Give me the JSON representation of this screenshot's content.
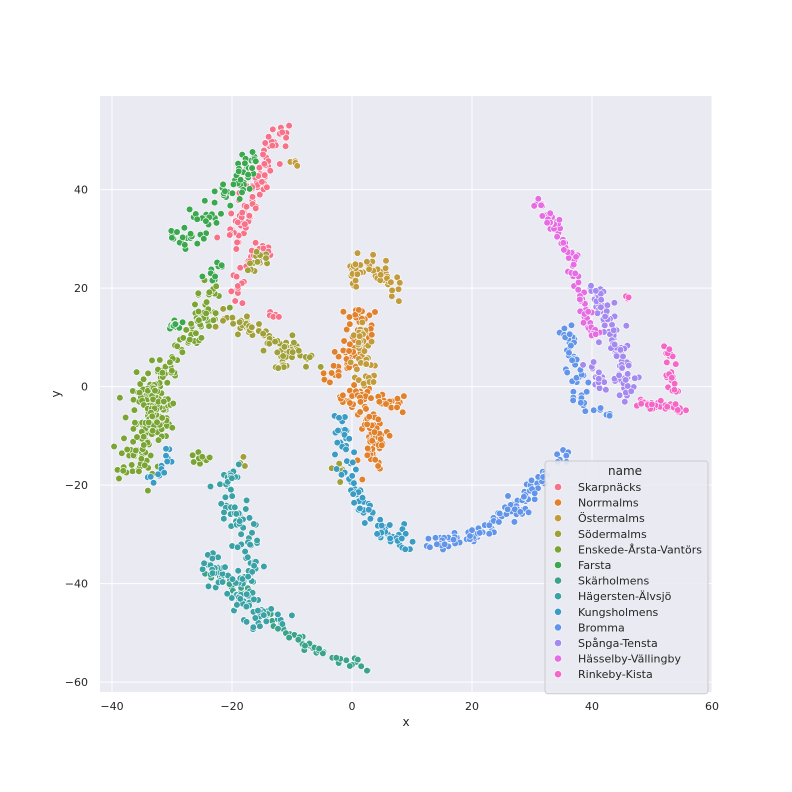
{
  "chart_data": {
    "type": "scatter",
    "xlabel": "x",
    "ylabel": "y",
    "xlim": [
      -42,
      60
    ],
    "ylim": [
      -62,
      59
    ],
    "xticks": [
      -40,
      -20,
      0,
      20,
      40,
      60
    ],
    "yticks": [
      -60,
      -40,
      -20,
      0,
      20,
      40
    ],
    "grid": true,
    "legend": {
      "title": "name",
      "placement": "lower-right"
    },
    "series": [
      {
        "name": "Skarpnäcks",
        "color": "#f77189",
        "clusters": [
          {
            "path": [
              [
                -20,
                29
              ],
              [
                -17,
                37
              ],
              [
                -15,
                43
              ],
              [
                -13,
                49
              ],
              [
                -11,
                53
              ]
            ],
            "spread": 1.6,
            "n": 90
          },
          {
            "path": [
              [
                -20,
                18
              ],
              [
                -18,
                24
              ],
              [
                -16,
                28
              ]
            ],
            "spread": 1.2,
            "n": 25
          },
          {
            "path": [
              [
                -14,
                15
              ],
              [
                -12,
                14
              ]
            ],
            "spread": 0.6,
            "n": 6
          },
          {
            "path": [
              [
                -15,
                29
              ],
              [
                -14,
                26
              ]
            ],
            "spread": 0.8,
            "n": 8
          }
        ]
      },
      {
        "name": "Norrmalms",
        "color": "#e1812c",
        "clusters": [
          {
            "path": [
              [
                -4,
                2
              ],
              [
                0,
                6
              ],
              [
                2,
                11
              ],
              [
                1,
                15
              ]
            ],
            "spread": 1.8,
            "n": 70
          },
          {
            "path": [
              [
                -2,
                -3
              ],
              [
                2,
                -1
              ],
              [
                5,
                -3
              ],
              [
                8,
                -3
              ]
            ],
            "spread": 1.5,
            "n": 50
          },
          {
            "path": [
              [
                2,
                -5
              ],
              [
                4,
                -10
              ],
              [
                3,
                -16
              ]
            ],
            "spread": 1.7,
            "n": 60
          }
        ]
      },
      {
        "name": "Östermalms",
        "color": "#c29c3c",
        "clusters": [
          {
            "path": [
              [
                0,
                20
              ],
              [
                2,
                26
              ],
              [
                5,
                22
              ],
              [
                8,
                19
              ]
            ],
            "spread": 1.6,
            "n": 45
          },
          {
            "path": [
              [
                1,
                13
              ],
              [
                2,
                6
              ],
              [
                3,
                0
              ]
            ],
            "spread": 1.5,
            "n": 45
          },
          {
            "path": [
              [
                -10,
                46
              ],
              [
                -9,
                45
              ]
            ],
            "spread": 0.5,
            "n": 4
          }
        ]
      },
      {
        "name": "Södermalms",
        "color": "#a0a03a",
        "clusters": [
          {
            "path": [
              [
                -23,
                15
              ],
              [
                -17,
                12
              ],
              [
                -12,
                8
              ],
              [
                -6,
                5
              ]
            ],
            "spread": 1.8,
            "n": 70
          },
          {
            "path": [
              [
                -17,
                23
              ],
              [
                -15,
                27
              ]
            ],
            "spread": 1.0,
            "n": 15
          },
          {
            "path": [
              [
                -12,
                4
              ],
              [
                -10,
                8
              ]
            ],
            "spread": 1.0,
            "n": 12
          },
          {
            "path": [
              [
                -2,
                -16
              ],
              [
                -2,
                -20
              ]
            ],
            "spread": 0.6,
            "n": 5
          },
          {
            "path": [
              [
                -18,
                -15
              ],
              [
                -17,
                -17
              ]
            ],
            "spread": 0.5,
            "n": 4
          }
        ]
      },
      {
        "name": "Enskede-Årsta-Vantörs",
        "color": "#7aa534",
        "clusters": [
          {
            "path": [
              [
                -36,
                -17
              ],
              [
                -35,
                -8
              ],
              [
                -34,
                0
              ],
              [
                -30,
                4
              ]
            ],
            "spread": 2.4,
            "n": 140
          },
          {
            "path": [
              [
                -28,
                8
              ],
              [
                -25,
                15
              ],
              [
                -23,
                20
              ]
            ],
            "spread": 2.0,
            "n": 60
          },
          {
            "path": [
              [
                -33,
                -10
              ],
              [
                -31,
                -3
              ]
            ],
            "spread": 2.0,
            "n": 60
          },
          {
            "path": [
              [
                -27,
                -14
              ],
              [
                -24,
                -15
              ]
            ],
            "spread": 0.8,
            "n": 10
          }
        ]
      },
      {
        "name": "Farsta",
        "color": "#3ba74f",
        "clusters": [
          {
            "path": [
              [
                -30,
                30
              ],
              [
                -26,
                31
              ],
              [
                -22,
                38
              ],
              [
                -19,
                42
              ],
              [
                -16,
                47
              ]
            ],
            "spread": 2.0,
            "n": 80
          },
          {
            "path": [
              [
                -30,
                12
              ],
              [
                -28,
                14
              ]
            ],
            "spread": 1.0,
            "n": 12
          },
          {
            "path": [
              [
                -24,
                22
              ],
              [
                -22,
                26
              ]
            ],
            "spread": 1.2,
            "n": 12
          }
        ]
      },
      {
        "name": "Skärholmens",
        "color": "#3ba38c",
        "clusters": [
          {
            "path": [
              [
                -15,
                -45
              ],
              [
                -11,
                -50
              ],
              [
                -7,
                -53
              ],
              [
                -3,
                -55
              ],
              [
                0,
                -56
              ],
              [
                2,
                -57
              ]
            ],
            "spread": 1.0,
            "n": 50
          },
          {
            "path": [
              [
                -24,
                -38
              ],
              [
                -20,
                -40
              ],
              [
                -17,
                -41
              ]
            ],
            "spread": 1.4,
            "n": 30
          }
        ]
      },
      {
        "name": "Hägersten-Älvsjö",
        "color": "#3aa1a6",
        "clusters": [
          {
            "path": [
              [
                -21,
                -17
              ],
              [
                -20,
                -24
              ],
              [
                -18,
                -30
              ],
              [
                -17,
                -36
              ],
              [
                -19,
                -42
              ],
              [
                -17,
                -46
              ],
              [
                -14,
                -48
              ],
              [
                -11,
                -48
              ]
            ],
            "spread": 1.8,
            "n": 130
          },
          {
            "path": [
              [
                -24,
                -35
              ],
              [
                -21,
                -40
              ]
            ],
            "spread": 1.5,
            "n": 25
          }
        ]
      },
      {
        "name": "Kungsholmens",
        "color": "#3a9cc4",
        "clusters": [
          {
            "path": [
              [
                -2,
                -6
              ],
              [
                -1,
                -14
              ],
              [
                0,
                -20
              ],
              [
                2,
                -25
              ],
              [
                5,
                -29
              ],
              [
                8,
                -31
              ],
              [
                11,
                -32
              ]
            ],
            "spread": 1.4,
            "n": 90
          },
          {
            "path": [
              [
                -30,
                -13
              ],
              [
                -32,
                -18
              ],
              [
                -34,
                -19
              ]
            ],
            "spread": 1.0,
            "n": 15
          }
        ]
      },
      {
        "name": "Bromma",
        "color": "#6295ea",
        "clusters": [
          {
            "path": [
              [
                11,
                -32
              ],
              [
                18,
                -31
              ],
              [
                23,
                -29
              ],
              [
                28,
                -23
              ],
              [
                32,
                -18
              ],
              [
                36,
                -13
              ]
            ],
            "spread": 1.3,
            "n": 110
          },
          {
            "path": [
              [
                36,
                12
              ],
              [
                37,
                5
              ],
              [
                38,
                -1
              ],
              [
                38,
                -4
              ]
            ],
            "spread": 1.4,
            "n": 45
          },
          {
            "path": [
              [
                41,
                -5
              ],
              [
                44,
                -6
              ]
            ],
            "spread": 0.6,
            "n": 6
          },
          {
            "path": [
              [
                27,
                -26
              ],
              [
                30,
                -25
              ]
            ],
            "spread": 0.8,
            "n": 8
          }
        ]
      },
      {
        "name": "Spånga-Tensta",
        "color": "#a489f0",
        "clusters": [
          {
            "path": [
              [
                40,
                20
              ],
              [
                42,
                15
              ],
              [
                44,
                10
              ],
              [
                45,
                4
              ],
              [
                46,
                -2
              ]
            ],
            "spread": 1.7,
            "n": 90
          },
          {
            "path": [
              [
                40,
                4
              ],
              [
                42,
                0
              ]
            ],
            "spread": 1.0,
            "n": 20
          }
        ]
      },
      {
        "name": "Hässelby-Vällingby",
        "color": "#e66ce4",
        "clusters": [
          {
            "path": [
              [
                31,
                38
              ],
              [
                34,
                32
              ],
              [
                37,
                25
              ],
              [
                38,
                20
              ],
              [
                39,
                14
              ]
            ],
            "spread": 0.9,
            "n": 70
          },
          {
            "path": [
              [
                39,
                13
              ],
              [
                41,
                11
              ]
            ],
            "spread": 0.9,
            "n": 15
          }
        ]
      },
      {
        "name": "Rinkeby-Kista",
        "color": "#f567c6",
        "clusters": [
          {
            "path": [
              [
                47,
                -3
              ],
              [
                51,
                -4
              ],
              [
                54,
                -4
              ],
              [
                55,
                -5
              ]
            ],
            "spread": 0.7,
            "n": 35
          },
          {
            "path": [
              [
                52,
                8
              ],
              [
                53,
                3
              ],
              [
                54,
                -2
              ]
            ],
            "spread": 0.8,
            "n": 25
          },
          {
            "path": [
              [
                45,
                18
              ],
              [
                46,
                18
              ]
            ],
            "spread": 0.4,
            "n": 3
          }
        ]
      }
    ]
  }
}
